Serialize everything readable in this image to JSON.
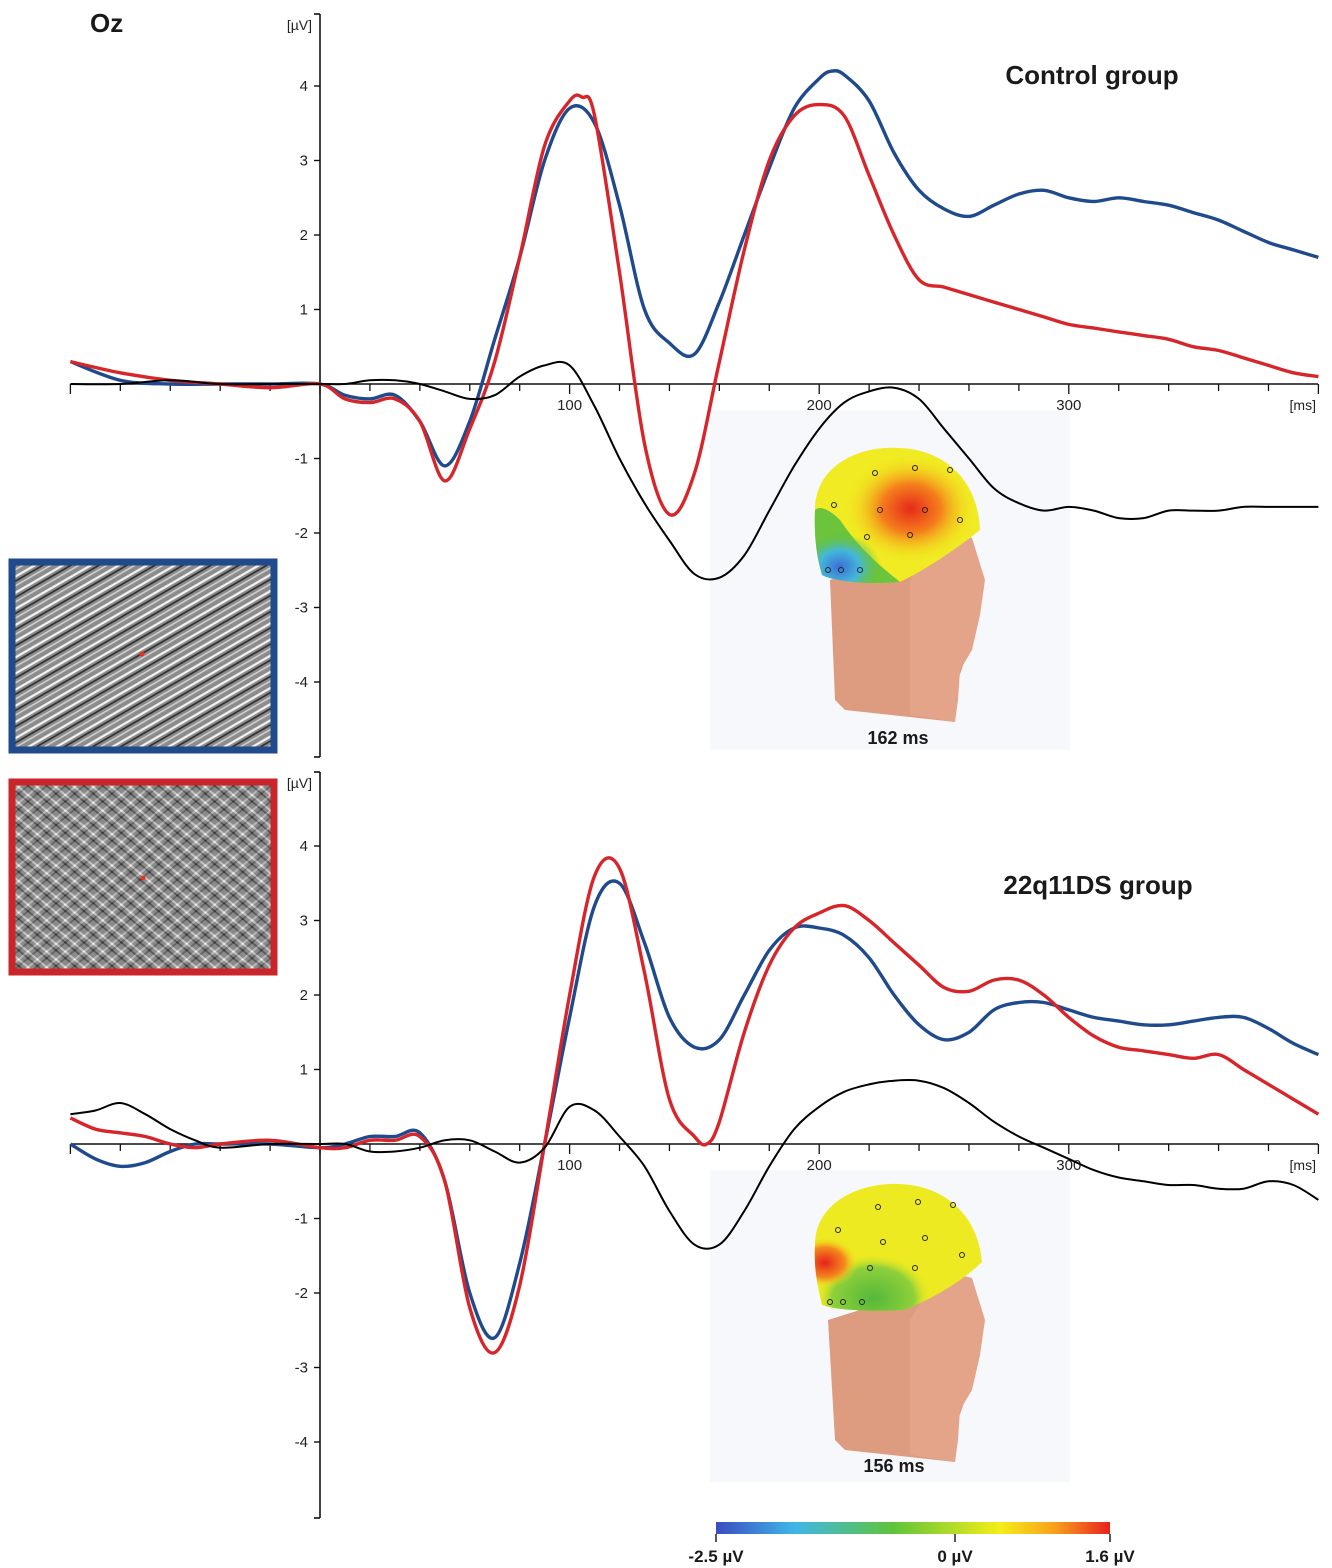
{
  "electrode": "Oz",
  "units": {
    "y": "[µV]",
    "x": "[ms]"
  },
  "colors": {
    "condition_blue": "#1f4a8c",
    "condition_red": "#d7262b",
    "difference": "#000000"
  },
  "colorbar": {
    "labels": [
      "-2.5 µV",
      "0 µV",
      "1.6 µV"
    ],
    "min": -2.5,
    "mid": 0,
    "max": 1.6,
    "stops": [
      "#3b4cc0",
      "#3fb6e8",
      "#5fc43a",
      "#f3ee1a",
      "#f8a11b",
      "#e8211e"
    ]
  },
  "stimuli": [
    {
      "name": "blue-framed stimulus",
      "frame_color": "#1f4a8c",
      "fixation_color": "#e8321f"
    },
    {
      "name": "red-framed stimulus",
      "frame_color": "#c9252b",
      "fixation_color": "#e8321f"
    }
  ],
  "chart_data": [
    {
      "type": "line",
      "title": "Control group",
      "xlabel": "[ms]",
      "ylabel": "[µV]",
      "xlim": [
        -100,
        400
      ],
      "ylim": [
        -5,
        5
      ],
      "x_ticks": [
        100,
        200,
        300
      ],
      "y_ticks": [
        -4,
        -3,
        -2,
        -1,
        1,
        2,
        3,
        4
      ],
      "topo_time": "162 ms",
      "series": [
        {
          "color": "#1f4a8c",
          "x": [
            -100,
            -80,
            -60,
            -40,
            -20,
            0,
            10,
            20,
            30,
            40,
            50,
            60,
            70,
            80,
            90,
            100,
            110,
            120,
            130,
            140,
            150,
            160,
            170,
            180,
            190,
            200,
            205,
            210,
            220,
            230,
            240,
            250,
            260,
            270,
            280,
            290,
            300,
            310,
            320,
            330,
            340,
            350,
            360,
            370,
            380,
            390,
            400
          ],
          "y": [
            0.3,
            0.05,
            0.0,
            0.0,
            0.0,
            0.0,
            -0.15,
            -0.2,
            -0.15,
            -0.5,
            -1.1,
            -0.5,
            0.6,
            1.7,
            3.0,
            3.7,
            3.5,
            2.4,
            1.0,
            0.55,
            0.4,
            1.1,
            2.0,
            2.9,
            3.7,
            4.1,
            4.2,
            4.15,
            3.8,
            3.1,
            2.6,
            2.35,
            2.25,
            2.4,
            2.55,
            2.6,
            2.5,
            2.45,
            2.5,
            2.45,
            2.4,
            2.3,
            2.2,
            2.05,
            1.9,
            1.8,
            1.7
          ]
        },
        {
          "color": "#d7262b",
          "x": [
            -100,
            -80,
            -60,
            -40,
            -20,
            0,
            10,
            20,
            30,
            40,
            50,
            60,
            70,
            80,
            90,
            100,
            105,
            110,
            120,
            130,
            140,
            150,
            160,
            170,
            180,
            190,
            200,
            210,
            220,
            230,
            240,
            250,
            260,
            270,
            280,
            290,
            300,
            310,
            320,
            330,
            340,
            350,
            360,
            370,
            380,
            390,
            400
          ],
          "y": [
            0.3,
            0.15,
            0.05,
            0.0,
            -0.05,
            0.0,
            -0.2,
            -0.25,
            -0.2,
            -0.5,
            -1.3,
            -0.6,
            0.3,
            1.7,
            3.2,
            3.8,
            3.85,
            3.6,
            1.5,
            -0.8,
            -1.75,
            -1.2,
            0.3,
            1.8,
            3.0,
            3.6,
            3.75,
            3.6,
            2.8,
            2.0,
            1.4,
            1.3,
            1.2,
            1.1,
            1.0,
            0.9,
            0.8,
            0.75,
            0.7,
            0.65,
            0.6,
            0.5,
            0.45,
            0.35,
            0.25,
            0.15,
            0.1
          ]
        },
        {
          "color": "#000000",
          "x": [
            -100,
            -80,
            -60,
            -40,
            -20,
            0,
            10,
            20,
            30,
            40,
            50,
            60,
            70,
            80,
            90,
            100,
            110,
            120,
            130,
            140,
            150,
            160,
            170,
            180,
            190,
            200,
            210,
            220,
            230,
            240,
            250,
            260,
            270,
            280,
            290,
            300,
            310,
            320,
            330,
            340,
            350,
            360,
            370,
            380,
            390,
            400
          ],
          "y": [
            0.0,
            0.0,
            0.05,
            0.0,
            0.0,
            0.0,
            0.0,
            0.05,
            0.05,
            0.0,
            -0.1,
            -0.2,
            -0.15,
            0.1,
            0.25,
            0.25,
            -0.3,
            -1.0,
            -1.6,
            -2.1,
            -2.55,
            -2.6,
            -2.3,
            -1.7,
            -1.1,
            -0.6,
            -0.25,
            -0.1,
            -0.05,
            -0.2,
            -0.6,
            -1.0,
            -1.4,
            -1.6,
            -1.7,
            -1.65,
            -1.7,
            -1.8,
            -1.8,
            -1.7,
            -1.7,
            -1.7,
            -1.65,
            -1.65,
            -1.65,
            -1.65
          ]
        }
      ]
    },
    {
      "type": "line",
      "title": "22q11DS group",
      "xlabel": "[ms]",
      "ylabel": "[µV]",
      "xlim": [
        -100,
        400
      ],
      "ylim": [
        -5,
        5
      ],
      "x_ticks": [
        100,
        200,
        300
      ],
      "y_ticks": [
        -4,
        -3,
        -2,
        -1,
        1,
        2,
        3,
        4
      ],
      "topo_time": "156 ms",
      "series": [
        {
          "color": "#1f4a8c",
          "x": [
            -100,
            -90,
            -80,
            -70,
            -60,
            -50,
            -40,
            -20,
            0,
            10,
            20,
            30,
            40,
            50,
            60,
            70,
            80,
            90,
            100,
            110,
            120,
            130,
            140,
            150,
            160,
            170,
            180,
            190,
            200,
            210,
            220,
            230,
            240,
            250,
            260,
            270,
            280,
            290,
            300,
            310,
            320,
            330,
            340,
            350,
            360,
            370,
            380,
            390,
            400
          ],
          "y": [
            0.0,
            -0.2,
            -0.3,
            -0.25,
            -0.1,
            0.0,
            0.0,
            0.0,
            -0.05,
            0.0,
            0.1,
            0.1,
            0.15,
            -0.5,
            -2.0,
            -2.6,
            -1.6,
            0.0,
            1.7,
            3.2,
            3.5,
            2.7,
            1.7,
            1.3,
            1.4,
            2.0,
            2.6,
            2.9,
            2.9,
            2.8,
            2.5,
            2.0,
            1.6,
            1.4,
            1.5,
            1.8,
            1.9,
            1.9,
            1.8,
            1.7,
            1.65,
            1.6,
            1.6,
            1.65,
            1.7,
            1.7,
            1.55,
            1.35,
            1.2
          ]
        },
        {
          "color": "#d7262b",
          "x": [
            -100,
            -90,
            -80,
            -70,
            -60,
            -50,
            -40,
            -20,
            0,
            10,
            20,
            30,
            40,
            50,
            60,
            70,
            80,
            90,
            100,
            110,
            120,
            130,
            140,
            150,
            155,
            160,
            170,
            180,
            190,
            200,
            210,
            220,
            230,
            240,
            250,
            260,
            270,
            280,
            290,
            300,
            310,
            320,
            330,
            340,
            350,
            360,
            370,
            380,
            390,
            400
          ],
          "y": [
            0.35,
            0.2,
            0.15,
            0.1,
            0.0,
            -0.05,
            0.0,
            0.05,
            -0.05,
            -0.05,
            0.05,
            0.05,
            0.1,
            -0.5,
            -2.2,
            -2.8,
            -1.9,
            0.0,
            2.0,
            3.6,
            3.7,
            2.3,
            0.6,
            0.1,
            0.0,
            0.3,
            1.5,
            2.4,
            2.9,
            3.1,
            3.2,
            3.0,
            2.7,
            2.4,
            2.1,
            2.05,
            2.2,
            2.2,
            2.0,
            1.7,
            1.45,
            1.3,
            1.25,
            1.2,
            1.15,
            1.2,
            1.0,
            0.8,
            0.6,
            0.4
          ]
        },
        {
          "color": "#000000",
          "x": [
            -100,
            -90,
            -80,
            -70,
            -60,
            -50,
            -40,
            -20,
            0,
            10,
            20,
            30,
            40,
            50,
            60,
            70,
            80,
            90,
            100,
            110,
            120,
            130,
            140,
            150,
            160,
            170,
            180,
            190,
            200,
            210,
            220,
            230,
            240,
            250,
            260,
            270,
            280,
            290,
            300,
            310,
            320,
            330,
            340,
            350,
            360,
            370,
            380,
            390,
            400
          ],
          "y": [
            0.4,
            0.45,
            0.55,
            0.4,
            0.2,
            0.05,
            -0.05,
            0.0,
            0.0,
            0.0,
            -0.1,
            -0.1,
            -0.05,
            0.05,
            0.05,
            -0.1,
            -0.25,
            -0.05,
            0.5,
            0.45,
            0.1,
            -0.3,
            -0.9,
            -1.35,
            -1.35,
            -0.9,
            -0.3,
            0.2,
            0.5,
            0.7,
            0.8,
            0.85,
            0.85,
            0.75,
            0.55,
            0.3,
            0.1,
            -0.05,
            -0.2,
            -0.35,
            -0.45,
            -0.5,
            -0.55,
            -0.55,
            -0.6,
            -0.6,
            -0.5,
            -0.55,
            -0.75
          ]
        }
      ]
    }
  ]
}
